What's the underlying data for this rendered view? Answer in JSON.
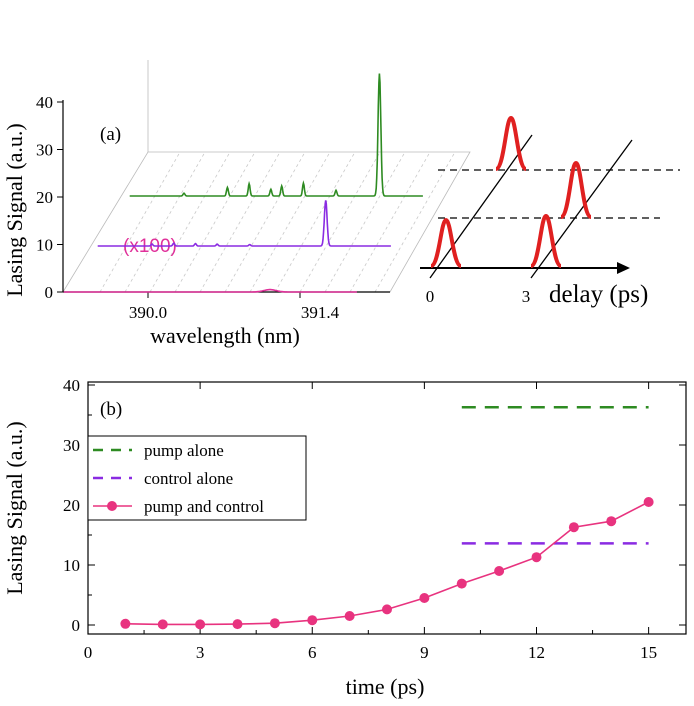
{
  "chart_data": [
    {
      "panel_label": "(a)",
      "type": "line",
      "ylabel": "Lasing Signal (a.u.)",
      "xlabel": "wavelength (nm)",
      "x_ticks": [
        "390.0",
        "391.4"
      ],
      "y_ticks": [
        "0",
        "10",
        "20",
        "30",
        "40"
      ],
      "ylim": [
        0,
        40
      ],
      "traces": [
        {
          "label": "(x100)",
          "color": "#e0309a",
          "baseline": 0,
          "peak_wavelength": 391.4,
          "peak_height": 0.5
        },
        {
          "color": "#8a2be2",
          "baseline": 11.7,
          "peak_wavelength": 391.6,
          "peak_height": 9.6
        },
        {
          "color": "#2e8b22",
          "baseline": 19.8,
          "peak_wavelength": 391.8,
          "peak_height": 25.8
        }
      ],
      "delay_inset": {
        "axis_label": "delay (ps)",
        "tick_labels": [
          "0",
          "3"
        ],
        "pulse_color": "#e02020"
      }
    },
    {
      "panel_label": "(b)",
      "type": "line",
      "xlabel": "time (ps)",
      "ylabel": "Lasing Signal (a.u.)",
      "xlim": [
        0,
        16
      ],
      "ylim": [
        -1.5,
        40.5
      ],
      "x_ticks": [
        0,
        3,
        6,
        9,
        12,
        15
      ],
      "y_ticks": [
        0,
        10,
        20,
        30,
        40
      ],
      "legend_position": "upper-left",
      "series": [
        {
          "name": "pump alone",
          "style": "dashed",
          "color": "#2e8b22",
          "x": [
            10,
            15
          ],
          "y": [
            36.3,
            36.3
          ]
        },
        {
          "name": "control alone",
          "style": "dashed",
          "color": "#8a2be2",
          "x": [
            10,
            15
          ],
          "y": [
            13.6,
            13.6
          ]
        },
        {
          "name": "pump and control",
          "style": "line-markers",
          "color": "#e8337f",
          "x": [
            1,
            2,
            3,
            4,
            5,
            6,
            7,
            8,
            9,
            10,
            11,
            12,
            13,
            14,
            15
          ],
          "y": [
            0.2,
            0.1,
            0.1,
            0.15,
            0.3,
            0.8,
            1.5,
            2.6,
            4.5,
            6.9,
            9.0,
            11.3,
            16.3,
            17.3,
            20.5
          ]
        }
      ]
    }
  ]
}
